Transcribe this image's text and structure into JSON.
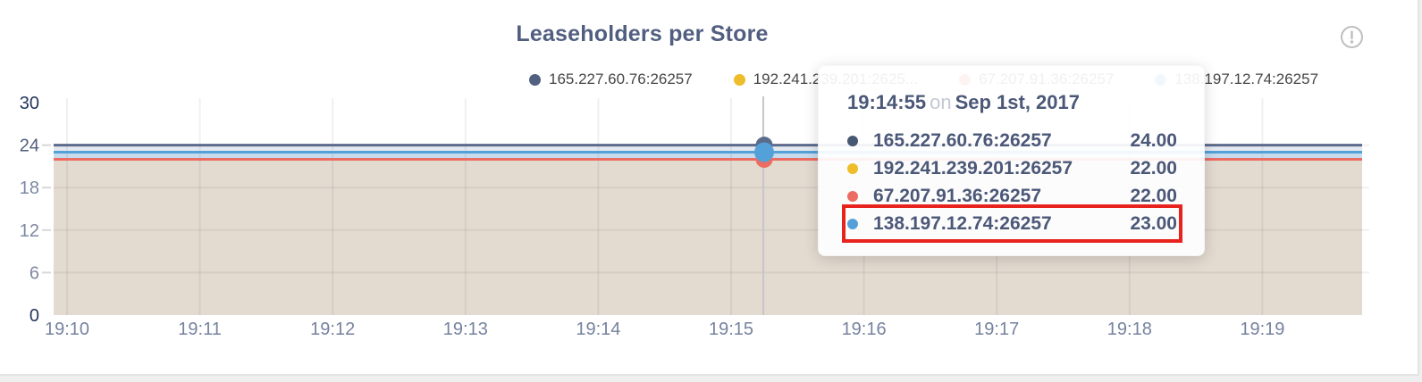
{
  "header": {
    "title": "Leaseholders per Store",
    "info_icon": "exclamation-circle",
    "info_icon_color": "#bfbfbf"
  },
  "legend": {
    "items": [
      {
        "label": "165.227.60.76:26257",
        "color": "#51617f"
      },
      {
        "label": "192.241.239.201:2625...",
        "color": "#eebd2a"
      },
      {
        "label": "67.207.91.36:26257",
        "color": "#ec6c64"
      },
      {
        "label": "138.197.12.74:26257",
        "color": "#54a1d9"
      }
    ]
  },
  "tooltip": {
    "time": "19:14:55",
    "conjunction": "on",
    "date": "Sep 1st, 2017",
    "highlight_color": "#e8221c",
    "rows": [
      {
        "label": "165.227.60.76:26257",
        "value": "24.00",
        "color": "#475872",
        "highlighted": false
      },
      {
        "label": "192.241.239.201:26257",
        "value": "22.00",
        "color": "#eebd2a",
        "highlighted": false
      },
      {
        "label": "67.207.91.36:26257",
        "value": "22.00",
        "color": "#ec6c64",
        "highlighted": false
      },
      {
        "label": "138.197.12.74:26257",
        "value": "23.00",
        "color": "#54a1d9",
        "highlighted": true
      }
    ]
  },
  "chart_data": {
    "type": "line",
    "title": "Leaseholders per Store",
    "x_ticks": [
      "19:10",
      "19:11",
      "19:12",
      "19:13",
      "19:14",
      "19:15",
      "19:16",
      "19:17",
      "19:18",
      "19:19"
    ],
    "y_ticks": [
      0,
      6,
      12,
      18,
      24,
      30
    ],
    "ylim": [
      0,
      30
    ],
    "grid": true,
    "legend_position": "top-right",
    "series": [
      {
        "name": "165.227.60.76:26257",
        "color": "#5b6b8b",
        "value": 24
      },
      {
        "name": "192.241.239.201:26257",
        "color": "#eebd2a",
        "value": 22
      },
      {
        "name": "67.207.91.36:26257",
        "color": "#ec6c64",
        "value": 22
      },
      {
        "name": "138.197.12.74:26257",
        "color": "#54a1d9",
        "value": 23
      }
    ],
    "note_series_shape": "all series are flat (constant) across 19:10-19:19",
    "hover_point": {
      "time": "19:14:55",
      "values": [
        24,
        22,
        22,
        23
      ]
    },
    "band_colors": [
      "#e4e9f1",
      "#c6dcee",
      "#e3dad0"
    ],
    "y_tick_styles": {
      "0": "strong",
      "30": "strong",
      "24": "mid"
    }
  }
}
